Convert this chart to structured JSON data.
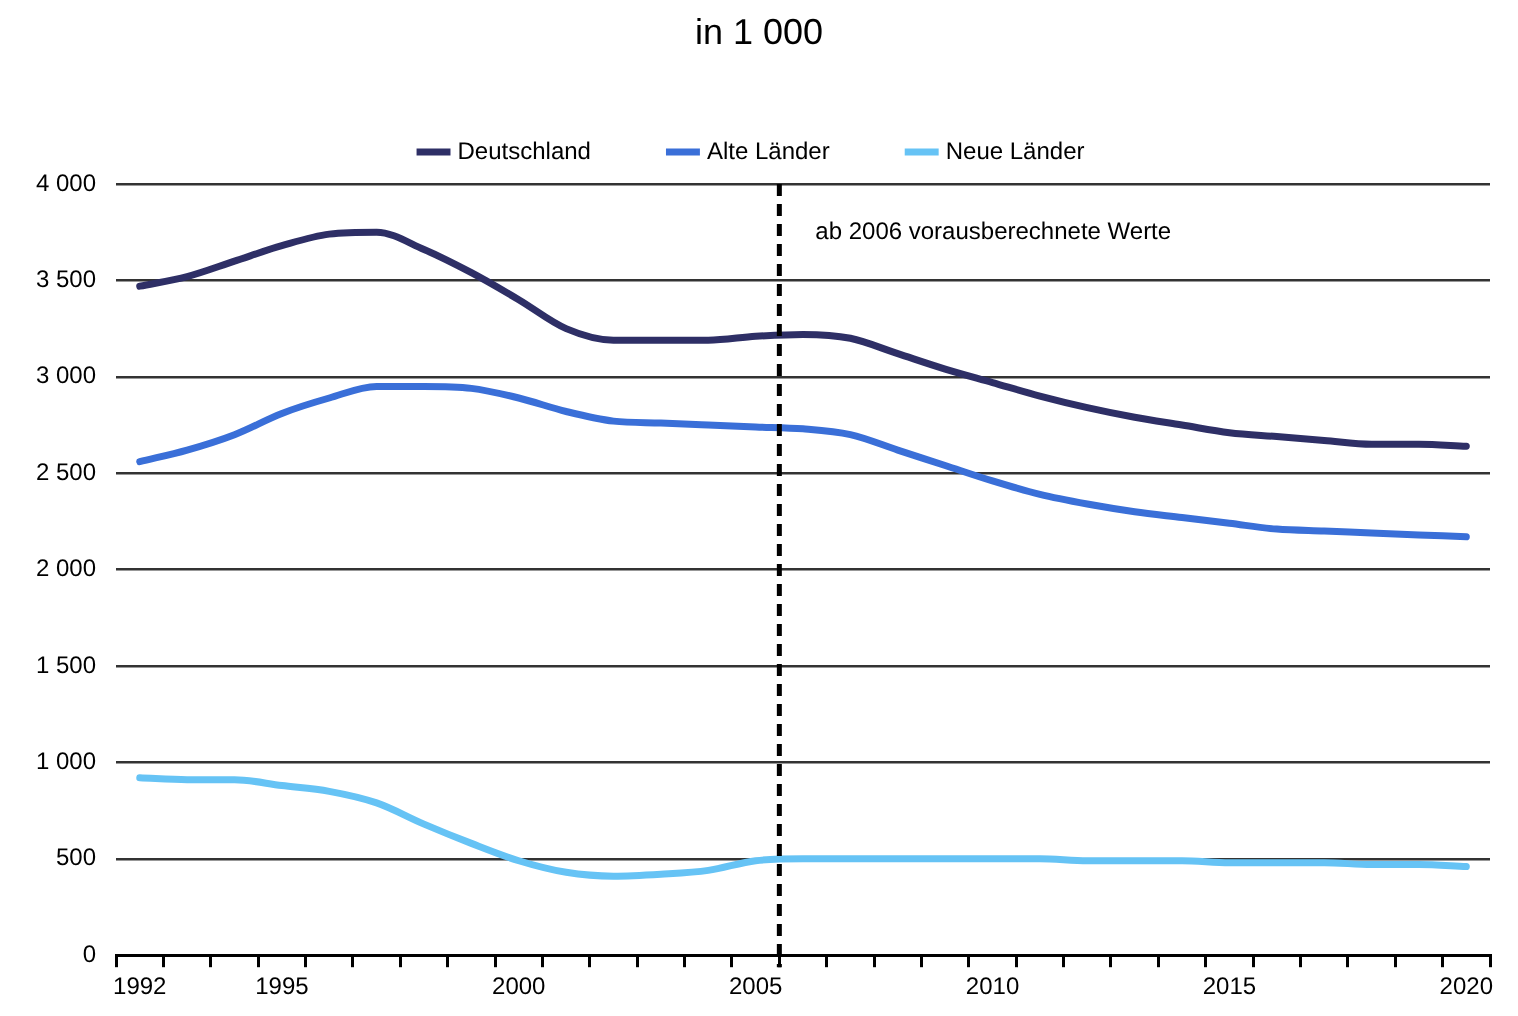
{
  "chart_data": {
    "type": "line",
    "title": "in 1 000",
    "x": [
      1992,
      1993,
      1994,
      1995,
      1996,
      1997,
      1998,
      1999,
      2000,
      2001,
      2002,
      2003,
      2004,
      2005,
      2006,
      2007,
      2008,
      2009,
      2010,
      2011,
      2012,
      2013,
      2014,
      2015,
      2016,
      2017,
      2018,
      2019,
      2020
    ],
    "series": [
      {
        "name": "Deutschland",
        "color": "#2e2f66",
        "values": [
          3470,
          3520,
          3600,
          3680,
          3740,
          3750,
          3660,
          3540,
          3400,
          3250,
          3190,
          3190,
          3190,
          3210,
          3220,
          3200,
          3120,
          3040,
          2970,
          2900,
          2840,
          2790,
          2750,
          2710,
          2690,
          2670,
          2650,
          2650,
          2640
        ]
      },
      {
        "name": "Alte Länder",
        "color": "#3a6fd8",
        "values": [
          2560,
          2620,
          2700,
          2810,
          2890,
          2950,
          2950,
          2940,
          2890,
          2820,
          2770,
          2760,
          2750,
          2740,
          2730,
          2700,
          2620,
          2540,
          2460,
          2390,
          2340,
          2300,
          2270,
          2240,
          2210,
          2200,
          2190,
          2180,
          2170
        ]
      },
      {
        "name": "Neue Länder",
        "color": "#66c3f5",
        "values": [
          920,
          910,
          910,
          880,
          850,
          790,
          680,
          580,
          490,
          430,
          410,
          420,
          440,
          490,
          500,
          500,
          500,
          500,
          500,
          500,
          490,
          490,
          490,
          480,
          480,
          480,
          470,
          470,
          460
        ]
      }
    ],
    "xlim": [
      1991.5,
      2020.5
    ],
    "xticks": [
      {
        "value": 1991.5,
        "label": null
      },
      1992,
      {
        "value": 1992.5,
        "label": null
      },
      {
        "value": 1993.5,
        "label": null
      },
      {
        "value": 1994.5,
        "label": null
      },
      1995,
      {
        "value": 1995.5,
        "label": null
      },
      {
        "value": 1996.5,
        "label": null
      },
      {
        "value": 1997.5,
        "label": null
      },
      {
        "value": 1998.5,
        "label": null
      },
      {
        "value": 1999.5,
        "label": null
      },
      2000,
      {
        "value": 2000.5,
        "label": null
      },
      {
        "value": 2001.5,
        "label": null
      },
      {
        "value": 2002.5,
        "label": null
      },
      {
        "value": 2003.5,
        "label": null
      },
      {
        "value": 2004.5,
        "label": null
      },
      2005,
      {
        "value": 2005.5,
        "label": null
      },
      {
        "value": 2006.5,
        "label": null
      },
      {
        "value": 2007.5,
        "label": null
      },
      {
        "value": 2008.5,
        "label": null
      },
      {
        "value": 2009.5,
        "label": null
      },
      2010,
      {
        "value": 2010.5,
        "label": null
      },
      {
        "value": 2011.5,
        "label": null
      },
      {
        "value": 2012.5,
        "label": null
      },
      {
        "value": 2013.5,
        "label": null
      },
      {
        "value": 2014.5,
        "label": null
      },
      2015,
      {
        "value": 2015.5,
        "label": null
      },
      {
        "value": 2016.5,
        "label": null
      },
      {
        "value": 2017.5,
        "label": null
      },
      {
        "value": 2018.5,
        "label": null
      },
      {
        "value": 2019.5,
        "label": null
      },
      2020,
      {
        "value": 2020.5,
        "label": null
      }
    ],
    "ylim": [
      0,
      4000
    ],
    "yticks": [
      0,
      500,
      {
        "value": 1000,
        "label": "1 000"
      },
      {
        "value": 1500,
        "label": "1 500"
      },
      {
        "value": 2000,
        "label": "2 000"
      },
      {
        "value": 2500,
        "label": "2 500"
      },
      {
        "value": 3000,
        "label": "3 000"
      },
      {
        "value": 3500,
        "label": "3 500"
      },
      {
        "value": 4000,
        "label": "4 000"
      }
    ],
    "grid": "y",
    "legend": "top",
    "marker": "none",
    "line_style": "solid",
    "ref_lines": [
      {
        "axis": "x",
        "value": 2005.5,
        "label": "ab 2006 vorausberechnete Werte",
        "color": "#000000",
        "line_style": "dashed"
      }
    ]
  }
}
